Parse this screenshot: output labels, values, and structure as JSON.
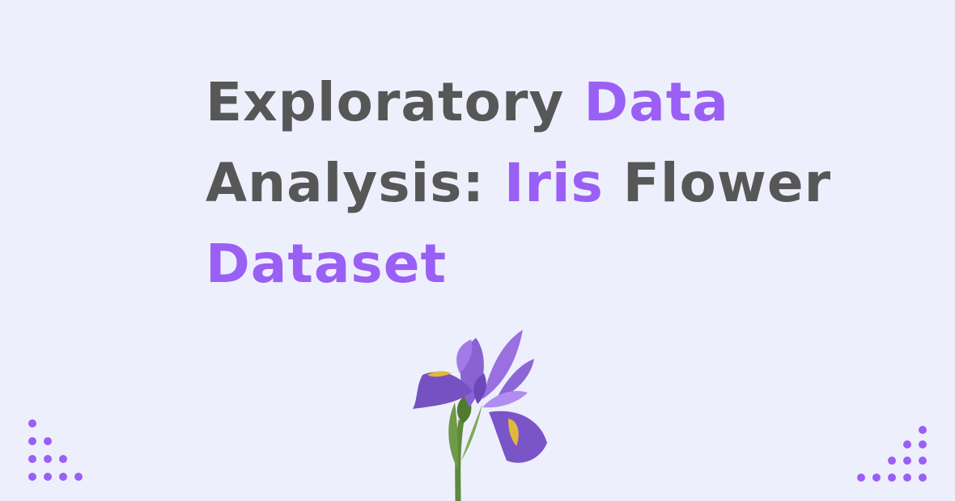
{
  "title": {
    "line1": {
      "part1": "Exploratory ",
      "part2": "Data"
    },
    "line2": {
      "part1": "Analysis: ",
      "part2": "Iris",
      "part3": " Flower"
    },
    "line3": {
      "part1": "Dataset"
    }
  },
  "colors": {
    "background": "#eeeffc",
    "text": "#575757",
    "accent": "#9a5ff4",
    "dots": "#9a5ff4",
    "petal": "#7d5bc6",
    "stem": "#5e8a3c"
  },
  "decorations": {
    "left": "dot-pattern-triangle",
    "right": "dot-pattern-triangle",
    "center": "iris-flower-icon"
  }
}
